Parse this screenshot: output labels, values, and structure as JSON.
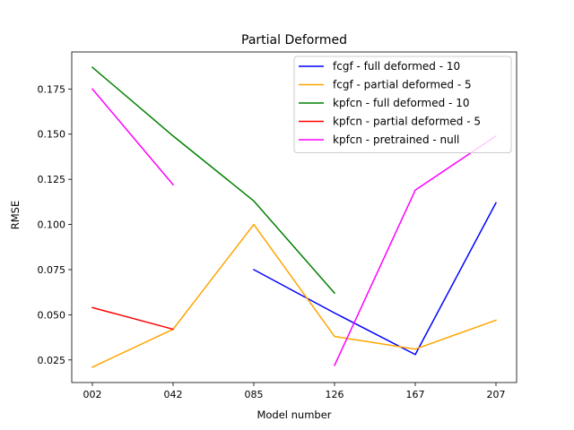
{
  "chart_data": {
    "type": "line",
    "title": "Partial Deformed",
    "xlabel": "Model number",
    "ylabel": "RMSE",
    "categories": [
      "002",
      "042",
      "085",
      "126",
      "167",
      "207"
    ],
    "yticks": [
      0.025,
      0.05,
      0.075,
      0.1,
      0.125,
      0.15,
      0.175
    ],
    "ytick_labels": [
      "0.025",
      "0.050",
      "0.075",
      "0.100",
      "0.125",
      "0.150",
      "0.175"
    ],
    "ylim": [
      0.0125,
      0.1955
    ],
    "legend_position": "top-right",
    "series": [
      {
        "name": "fcgf - full deformed - 10",
        "color": "#0000ff",
        "values": [
          null,
          null,
          0.075,
          0.051,
          0.028,
          0.112
        ]
      },
      {
        "name": "fcgf - partial deformed - 5",
        "color": "#ffa500",
        "values": [
          0.021,
          0.042,
          0.1,
          0.038,
          0.031,
          0.047
        ]
      },
      {
        "name": "kpfcn - full deformed - 10",
        "color": "#008000",
        "values": [
          0.187,
          0.149,
          0.113,
          0.062,
          null,
          null
        ]
      },
      {
        "name": "kpfcn - partial deformed - 5",
        "color": "#ff0000",
        "values": [
          0.054,
          0.042,
          null,
          null,
          null,
          null
        ]
      },
      {
        "name": "kpfcn - pretrained - null",
        "color": "#ff00ff",
        "values": [
          0.175,
          0.122,
          null,
          0.022,
          0.119,
          0.149
        ]
      }
    ]
  }
}
